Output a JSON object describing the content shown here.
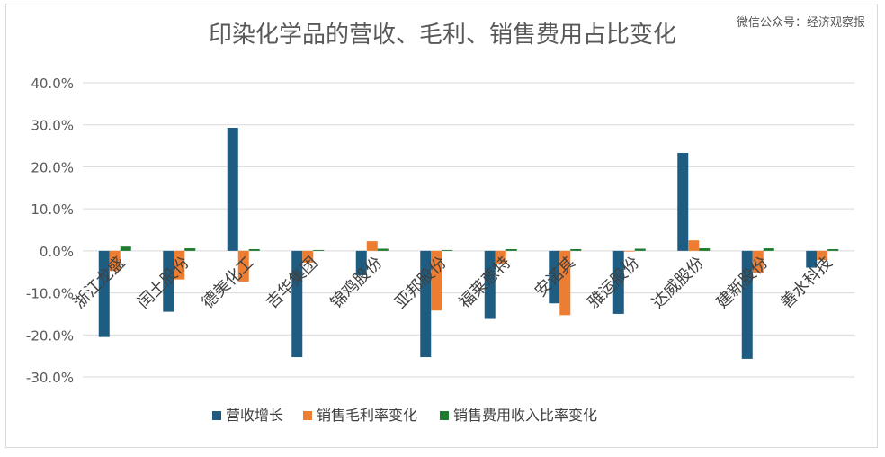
{
  "chart_data": {
    "type": "bar",
    "title": "印染化学品的营收、毛利、销售费用占比变化",
    "watermark": "微信公众号：经济观察报",
    "categories": [
      "浙江龙盛",
      "闰土股份",
      "德美化工",
      "吉华集团",
      "锦鸡股份",
      "亚邦股份",
      "福莱蒽特",
      "安诺其",
      "雅运股份",
      "达威股份",
      "建新股份",
      "善水科技"
    ],
    "ylim": [
      -30,
      40
    ],
    "yticks": [
      40,
      30,
      20,
      10,
      0,
      -10,
      -20,
      -30
    ],
    "ytick_labels": [
      "40.0%",
      "30.0%",
      "20.0%",
      "10.0%",
      "0.0%",
      "-10.0%",
      "-20.0%",
      "-30.0%"
    ],
    "grid": true,
    "legend_position": "bottom",
    "series": [
      {
        "name": "营收增长",
        "color": "#1f5c82",
        "values": [
          -20.5,
          -14.5,
          29.3,
          -25.3,
          -5.8,
          -25.3,
          -16.2,
          -12.5,
          -15.0,
          23.3,
          -25.7,
          -4.0
        ]
      },
      {
        "name": "销售毛利率变化",
        "color": "#ed7d31",
        "values": [
          -4.8,
          -6.8,
          -7.3,
          -2.8,
          2.3,
          -14.2,
          -3.0,
          -15.3,
          0.0,
          2.5,
          -5.2,
          -2.2
        ]
      },
      {
        "name": "销售费用收入比率变化",
        "color": "#1e7a2e",
        "values": [
          1.0,
          0.6,
          0.4,
          0.2,
          0.5,
          0.2,
          0.4,
          0.4,
          0.5,
          0.6,
          0.6,
          0.4
        ]
      }
    ]
  }
}
